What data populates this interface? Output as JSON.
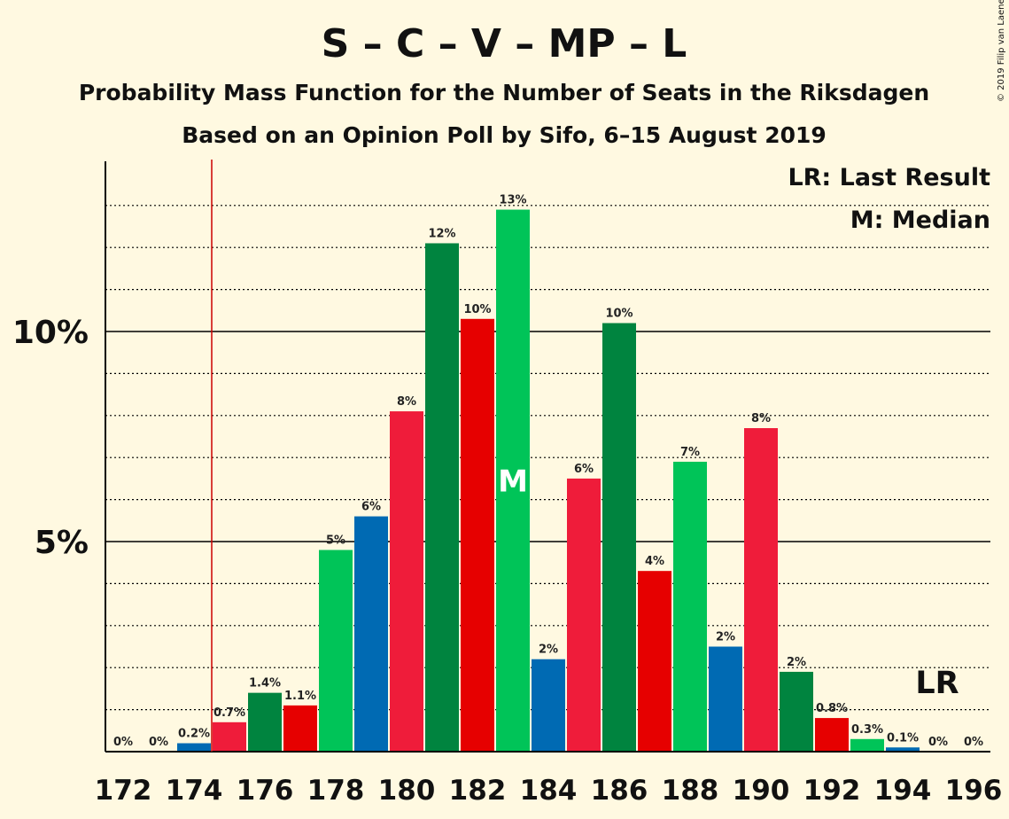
{
  "chart_data": {
    "type": "bar",
    "title": "S – C – V – MP – L",
    "subtitle_1": "Probability Mass Function for the Number of Seats in the Riksdagen",
    "subtitle_2": "Based on an Opinion Poll by Sifo, 6–15 August 2019",
    "copyright": "© 2019 Filip van Laenen",
    "legend": {
      "lr": "LR: Last Result",
      "median": "M: Median",
      "placement": "top-right"
    },
    "ylim": [
      0,
      14
    ],
    "yticks": [
      {
        "value": 5,
        "label": "5%"
      },
      {
        "value": 10,
        "label": "10%"
      }
    ],
    "minor_grid_step": 1,
    "x_tick_labels": [
      "172",
      "174",
      "176",
      "178",
      "180",
      "182",
      "184",
      "186",
      "188",
      "190",
      "192",
      "194",
      "196"
    ],
    "categories": [
      172,
      173,
      174,
      175,
      176,
      177,
      178,
      179,
      180,
      181,
      182,
      183,
      184,
      185,
      186,
      187,
      188,
      189,
      190,
      191,
      192,
      193,
      194,
      195,
      196
    ],
    "values": [
      0,
      0,
      0.2,
      0.7,
      1.4,
      1.1,
      4.8,
      5.6,
      8.1,
      12.1,
      10.3,
      12.9,
      2.2,
      6.5,
      10.2,
      4.3,
      6.9,
      2.5,
      7.7,
      1.9,
      0.8,
      0.3,
      0.1,
      0,
      0
    ],
    "data_labels": [
      "0%",
      "0%",
      "0.2%",
      "0.7%",
      "1.4%",
      "1.1%",
      "5%",
      "6%",
      "8%",
      "12%",
      "10%",
      "13%",
      "2%",
      "6%",
      "10%",
      "4%",
      "7%",
      "2%",
      "8%",
      "2%",
      "0.8%",
      "0.3%",
      "0.1%",
      "0%",
      "0%"
    ],
    "bar_colors": [
      "#006AB3",
      "#006AB3",
      "#006AB3",
      "#EF1C3A",
      "#00843F",
      "#E60000",
      "#00C458",
      "#006AB3",
      "#EF1C3A",
      "#00843F",
      "#E60000",
      "#00C458",
      "#006AB3",
      "#EF1C3A",
      "#00843F",
      "#E60000",
      "#00C458",
      "#006AB3",
      "#EF1C3A",
      "#00843F",
      "#E60000",
      "#00C458",
      "#006AB3",
      "#EF1C3A",
      "#00843F"
    ],
    "last_result_seat": 174.5,
    "last_result_label": "LR",
    "last_result_color": "#cc0000",
    "median_seat": 183,
    "median_label": "M"
  }
}
